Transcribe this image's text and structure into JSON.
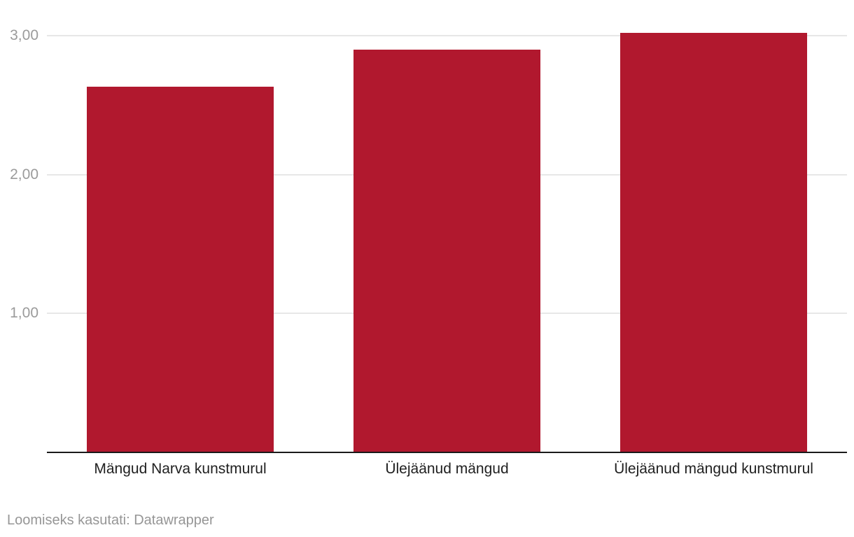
{
  "chart_data": {
    "type": "bar",
    "categories": [
      "Mängud Narva kunstmurul",
      "Ülejäänud mängud",
      "Ülejäänud mängud kunstmurul"
    ],
    "values": [
      2.63,
      2.9,
      3.02
    ],
    "title": "",
    "xlabel": "",
    "ylabel": "",
    "ylim": [
      0,
      3.1
    ],
    "yticks": [
      1,
      2,
      3
    ],
    "ytick_labels": [
      "1,00",
      "2,00",
      "3,00"
    ],
    "grid": true,
    "legend": "none",
    "bar_color": "#b1182e"
  },
  "colors": {
    "background": "#ffffff",
    "bar": "#b1182e",
    "gridline": "#e7e7e7",
    "axis_line": "#1a1a1a",
    "tick_text": "#9b9b9b",
    "category_text": "#1f1f1f",
    "footer_text": "#969696"
  },
  "footer": {
    "prefix": "Loomiseks kasutati:",
    "tool": "Datawrapper"
  }
}
